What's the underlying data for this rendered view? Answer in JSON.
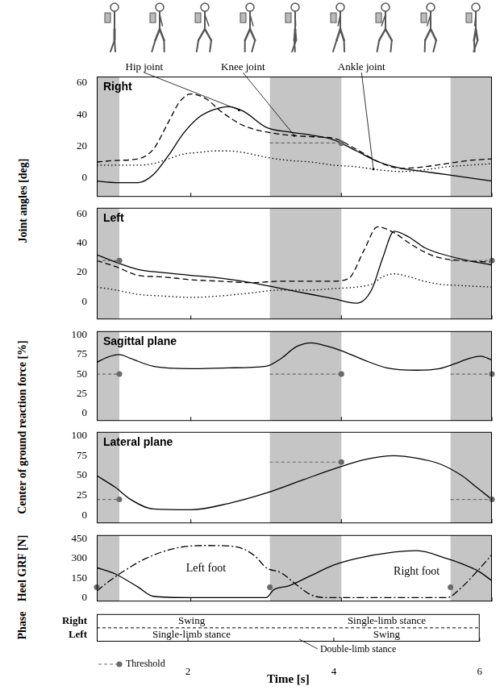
{
  "chart_data": [
    {
      "type": "line",
      "title": "Right",
      "ylabel": "Joint angles [deg]",
      "xlim": [
        0.75,
        6.0
      ],
      "xticks": [
        2,
        4,
        6
      ],
      "ylim": [
        -12,
        64
      ],
      "yticks": [
        0,
        20,
        40,
        60
      ],
      "shaded": [
        [
          0.75,
          1.05
        ],
        [
          3.05,
          4.0
        ],
        [
          5.45,
          6.0
        ]
      ],
      "thresholds": [
        {
          "x": [
            3.05,
            4.0
          ],
          "value": 22
        }
      ],
      "series": [
        {
          "name": "Hip joint",
          "color": "#000000",
          "line_style": "solid",
          "x": [
            0.75,
            1.0,
            1.3,
            1.5,
            1.7,
            1.9,
            2.1,
            2.3,
            2.5,
            2.7,
            3.0,
            3.3,
            3.6,
            3.9,
            4.2,
            4.5,
            4.8,
            5.1,
            5.4,
            5.7,
            6.0
          ],
          "values": [
            -2,
            -3,
            -3,
            2,
            14,
            28,
            38,
            43,
            45,
            42,
            32,
            29,
            27,
            24,
            17,
            10,
            6,
            4,
            2,
            0,
            -2
          ]
        },
        {
          "name": "Knee joint",
          "color": "#000000",
          "line_style": "dashed",
          "x": [
            0.75,
            1.0,
            1.3,
            1.5,
            1.7,
            1.85,
            2.0,
            2.2,
            2.4,
            2.7,
            3.0,
            3.3,
            3.6,
            3.9,
            4.2,
            4.5,
            4.8,
            5.1,
            5.4,
            5.7,
            6.0
          ],
          "values": [
            10,
            11,
            12,
            18,
            35,
            48,
            53,
            50,
            42,
            33,
            29,
            27,
            26,
            25,
            18,
            10,
            6,
            7,
            9,
            11,
            12
          ]
        },
        {
          "name": "Ankle joint",
          "color": "#000000",
          "line_style": "dotted",
          "x": [
            0.75,
            1.0,
            1.3,
            1.5,
            1.7,
            1.9,
            2.1,
            2.3,
            2.5,
            2.7,
            3.0,
            3.3,
            3.6,
            3.9,
            4.2,
            4.5,
            4.8,
            5.1,
            5.4,
            5.7,
            6.0
          ],
          "values": [
            8,
            8,
            8,
            9,
            12,
            15,
            16,
            17,
            17,
            16,
            13,
            11,
            10,
            8,
            7,
            5,
            4,
            5,
            7,
            8,
            9
          ]
        }
      ]
    },
    {
      "type": "line",
      "title": "Left",
      "xlim": [
        0.75,
        6.0
      ],
      "xticks": [
        2,
        4,
        6
      ],
      "ylim": [
        -12,
        64
      ],
      "yticks": [
        0,
        20,
        40,
        60
      ],
      "shaded": [
        [
          0.75,
          1.05
        ],
        [
          3.05,
          4.0
        ],
        [
          5.45,
          6.0
        ]
      ],
      "thresholds": [
        {
          "x": [
            0.75,
            1.05
          ],
          "value": 28
        },
        {
          "x": [
            5.45,
            6.0
          ],
          "value": 28
        }
      ],
      "series": [
        {
          "color": "#000000",
          "line_style": "solid",
          "x": [
            0.75,
            1.0,
            1.3,
            1.6,
            2.0,
            2.4,
            2.8,
            3.2,
            3.6,
            3.9,
            4.2,
            4.4,
            4.55,
            4.7,
            4.9,
            5.1,
            5.3,
            5.6,
            6.0
          ],
          "values": [
            32,
            27,
            22,
            20,
            18,
            16,
            13,
            9,
            5,
            2,
            -1,
            8,
            30,
            48,
            44,
            37,
            33,
            29,
            25
          ]
        },
        {
          "color": "#000000",
          "line_style": "dashed",
          "x": [
            0.75,
            1.0,
            1.3,
            1.6,
            2.0,
            2.4,
            2.8,
            3.2,
            3.6,
            3.9,
            4.1,
            4.3,
            4.48,
            4.7,
            4.9,
            5.1,
            5.3,
            5.6,
            6.0
          ],
          "values": [
            28,
            24,
            18,
            17,
            15,
            14,
            13,
            14,
            14,
            14,
            16,
            35,
            51,
            47,
            40,
            34,
            30,
            28,
            27
          ]
        },
        {
          "color": "#000000",
          "line_style": "dotted",
          "x": [
            0.75,
            1.0,
            1.3,
            1.6,
            2.0,
            2.4,
            2.8,
            3.2,
            3.6,
            3.9,
            4.2,
            4.4,
            4.55,
            4.7,
            4.9,
            5.1,
            5.3,
            5.6,
            6.0
          ],
          "values": [
            10,
            8,
            5,
            4,
            3,
            4,
            6,
            8,
            8,
            9,
            10,
            12,
            17,
            19,
            17,
            14,
            12,
            11,
            10
          ]
        }
      ]
    },
    {
      "type": "line",
      "title": "Sagittal plane",
      "ylabel": "Center of ground reaction force [%]",
      "xlim": [
        0.75,
        6.0
      ],
      "xticks": [
        2,
        4,
        6
      ],
      "ylim": [
        -10,
        105
      ],
      "yticks": [
        0,
        25,
        50,
        75,
        100
      ],
      "shaded": [
        [
          0.75,
          1.05
        ],
        [
          3.05,
          4.0
        ],
        [
          5.45,
          6.0
        ]
      ],
      "thresholds": [
        {
          "x": [
            0.75,
            1.05
          ],
          "value": 50
        },
        {
          "x": [
            3.05,
            4.0
          ],
          "value": 50
        },
        {
          "x": [
            5.45,
            6.0
          ],
          "value": 50
        }
      ],
      "series": [
        {
          "color": "#000000",
          "line_style": "solid",
          "x": [
            0.75,
            0.9,
            1.05,
            1.2,
            1.5,
            2.0,
            2.5,
            3.0,
            3.2,
            3.4,
            3.6,
            3.8,
            4.0,
            4.3,
            4.6,
            5.0,
            5.3,
            5.5,
            5.7,
            5.85,
            6.0
          ],
          "values": [
            65,
            72,
            75,
            70,
            60,
            57,
            58,
            60,
            70,
            85,
            90,
            86,
            80,
            68,
            58,
            55,
            57,
            63,
            70,
            73,
            68
          ]
        }
      ]
    },
    {
      "type": "line",
      "title": "Lateral plane",
      "xlim": [
        0.75,
        6.0
      ],
      "xticks": [
        2,
        4,
        6
      ],
      "ylim": [
        -10,
        105
      ],
      "yticks": [
        0,
        25,
        50,
        75,
        100
      ],
      "shaded": [
        [
          0.75,
          1.05
        ],
        [
          3.05,
          4.0
        ],
        [
          5.45,
          6.0
        ]
      ],
      "thresholds": [
        {
          "x": [
            0.75,
            1.05
          ],
          "value": 20
        },
        {
          "x": [
            3.05,
            4.0
          ],
          "value": 67
        },
        {
          "x": [
            5.45,
            6.0
          ],
          "value": 20
        }
      ],
      "series": [
        {
          "color": "#000000",
          "line_style": "solid",
          "x": [
            0.75,
            1.0,
            1.2,
            1.5,
            2.0,
            2.5,
            3.0,
            3.5,
            3.95,
            4.3,
            4.7,
            5.0,
            5.3,
            5.6,
            5.8,
            6.0
          ],
          "values": [
            50,
            35,
            20,
            8,
            7,
            15,
            28,
            45,
            60,
            70,
            75,
            72,
            65,
            50,
            35,
            20
          ]
        }
      ]
    },
    {
      "type": "line",
      "ylabel": "Heel GRF [N]",
      "xlim": [
        0.75,
        6.0
      ],
      "xticks": [
        2,
        4,
        6
      ],
      "ylim": [
        -30,
        480
      ],
      "yticks": [
        0,
        150,
        300,
        450
      ],
      "shaded": [
        [
          0.75,
          1.05
        ],
        [
          3.05,
          4.0
        ],
        [
          5.45,
          6.0
        ]
      ],
      "thresholds": [
        {
          "x": [
            0.75,
            0.75
          ],
          "value": 80
        },
        {
          "x": [
            3.05,
            3.05
          ],
          "value": 80
        },
        {
          "x": [
            5.45,
            5.45
          ],
          "value": 80
        }
      ],
      "series": [
        {
          "name": "Left foot",
          "color": "#000000",
          "line_style": "dashdot",
          "x": [
            0.75,
            0.9,
            1.1,
            1.4,
            1.8,
            2.2,
            2.6,
            2.85,
            3.0,
            3.2,
            3.4,
            3.6,
            3.8,
            4.5,
            5.4,
            5.6,
            5.8,
            6.0
          ],
          "values": [
            50,
            120,
            200,
            300,
            380,
            400,
            390,
            320,
            230,
            190,
            100,
            20,
            0,
            0,
            0,
            80,
            200,
            330
          ]
        },
        {
          "name": "Right foot",
          "color": "#000000",
          "line_style": "solid",
          "x": [
            0.75,
            1.0,
            1.3,
            1.5,
            2.0,
            3.0,
            3.1,
            3.3,
            3.6,
            3.9,
            4.2,
            4.7,
            5.0,
            5.4,
            5.6,
            5.8,
            6.0
          ],
          "values": [
            230,
            180,
            80,
            10,
            0,
            0,
            60,
            90,
            170,
            250,
            300,
            350,
            360,
            300,
            260,
            210,
            130
          ]
        }
      ]
    },
    {
      "type": "phase",
      "ylabel": "Phase",
      "xlabel": "Time [s]",
      "xlim": [
        0.75,
        6.0
      ],
      "xticks": [
        2,
        4,
        6
      ],
      "rows": [
        "Right",
        "Left"
      ],
      "segments": [
        {
          "row": "Right",
          "x": [
            1.05,
            3.05
          ],
          "label": "Swing"
        },
        {
          "row": "Right",
          "x": [
            4.0,
            5.45
          ],
          "label": "Single-limb stance"
        },
        {
          "row": "Left",
          "x": [
            1.05,
            3.05
          ],
          "label": "Single-limb stance"
        },
        {
          "row": "Left",
          "x": [
            4.0,
            5.45
          ],
          "label": "Swing"
        }
      ],
      "annotation": {
        "text": "Double-limb stance",
        "x": [
          3.05,
          4.0
        ]
      },
      "threshold_label": "Threshold"
    }
  ]
}
